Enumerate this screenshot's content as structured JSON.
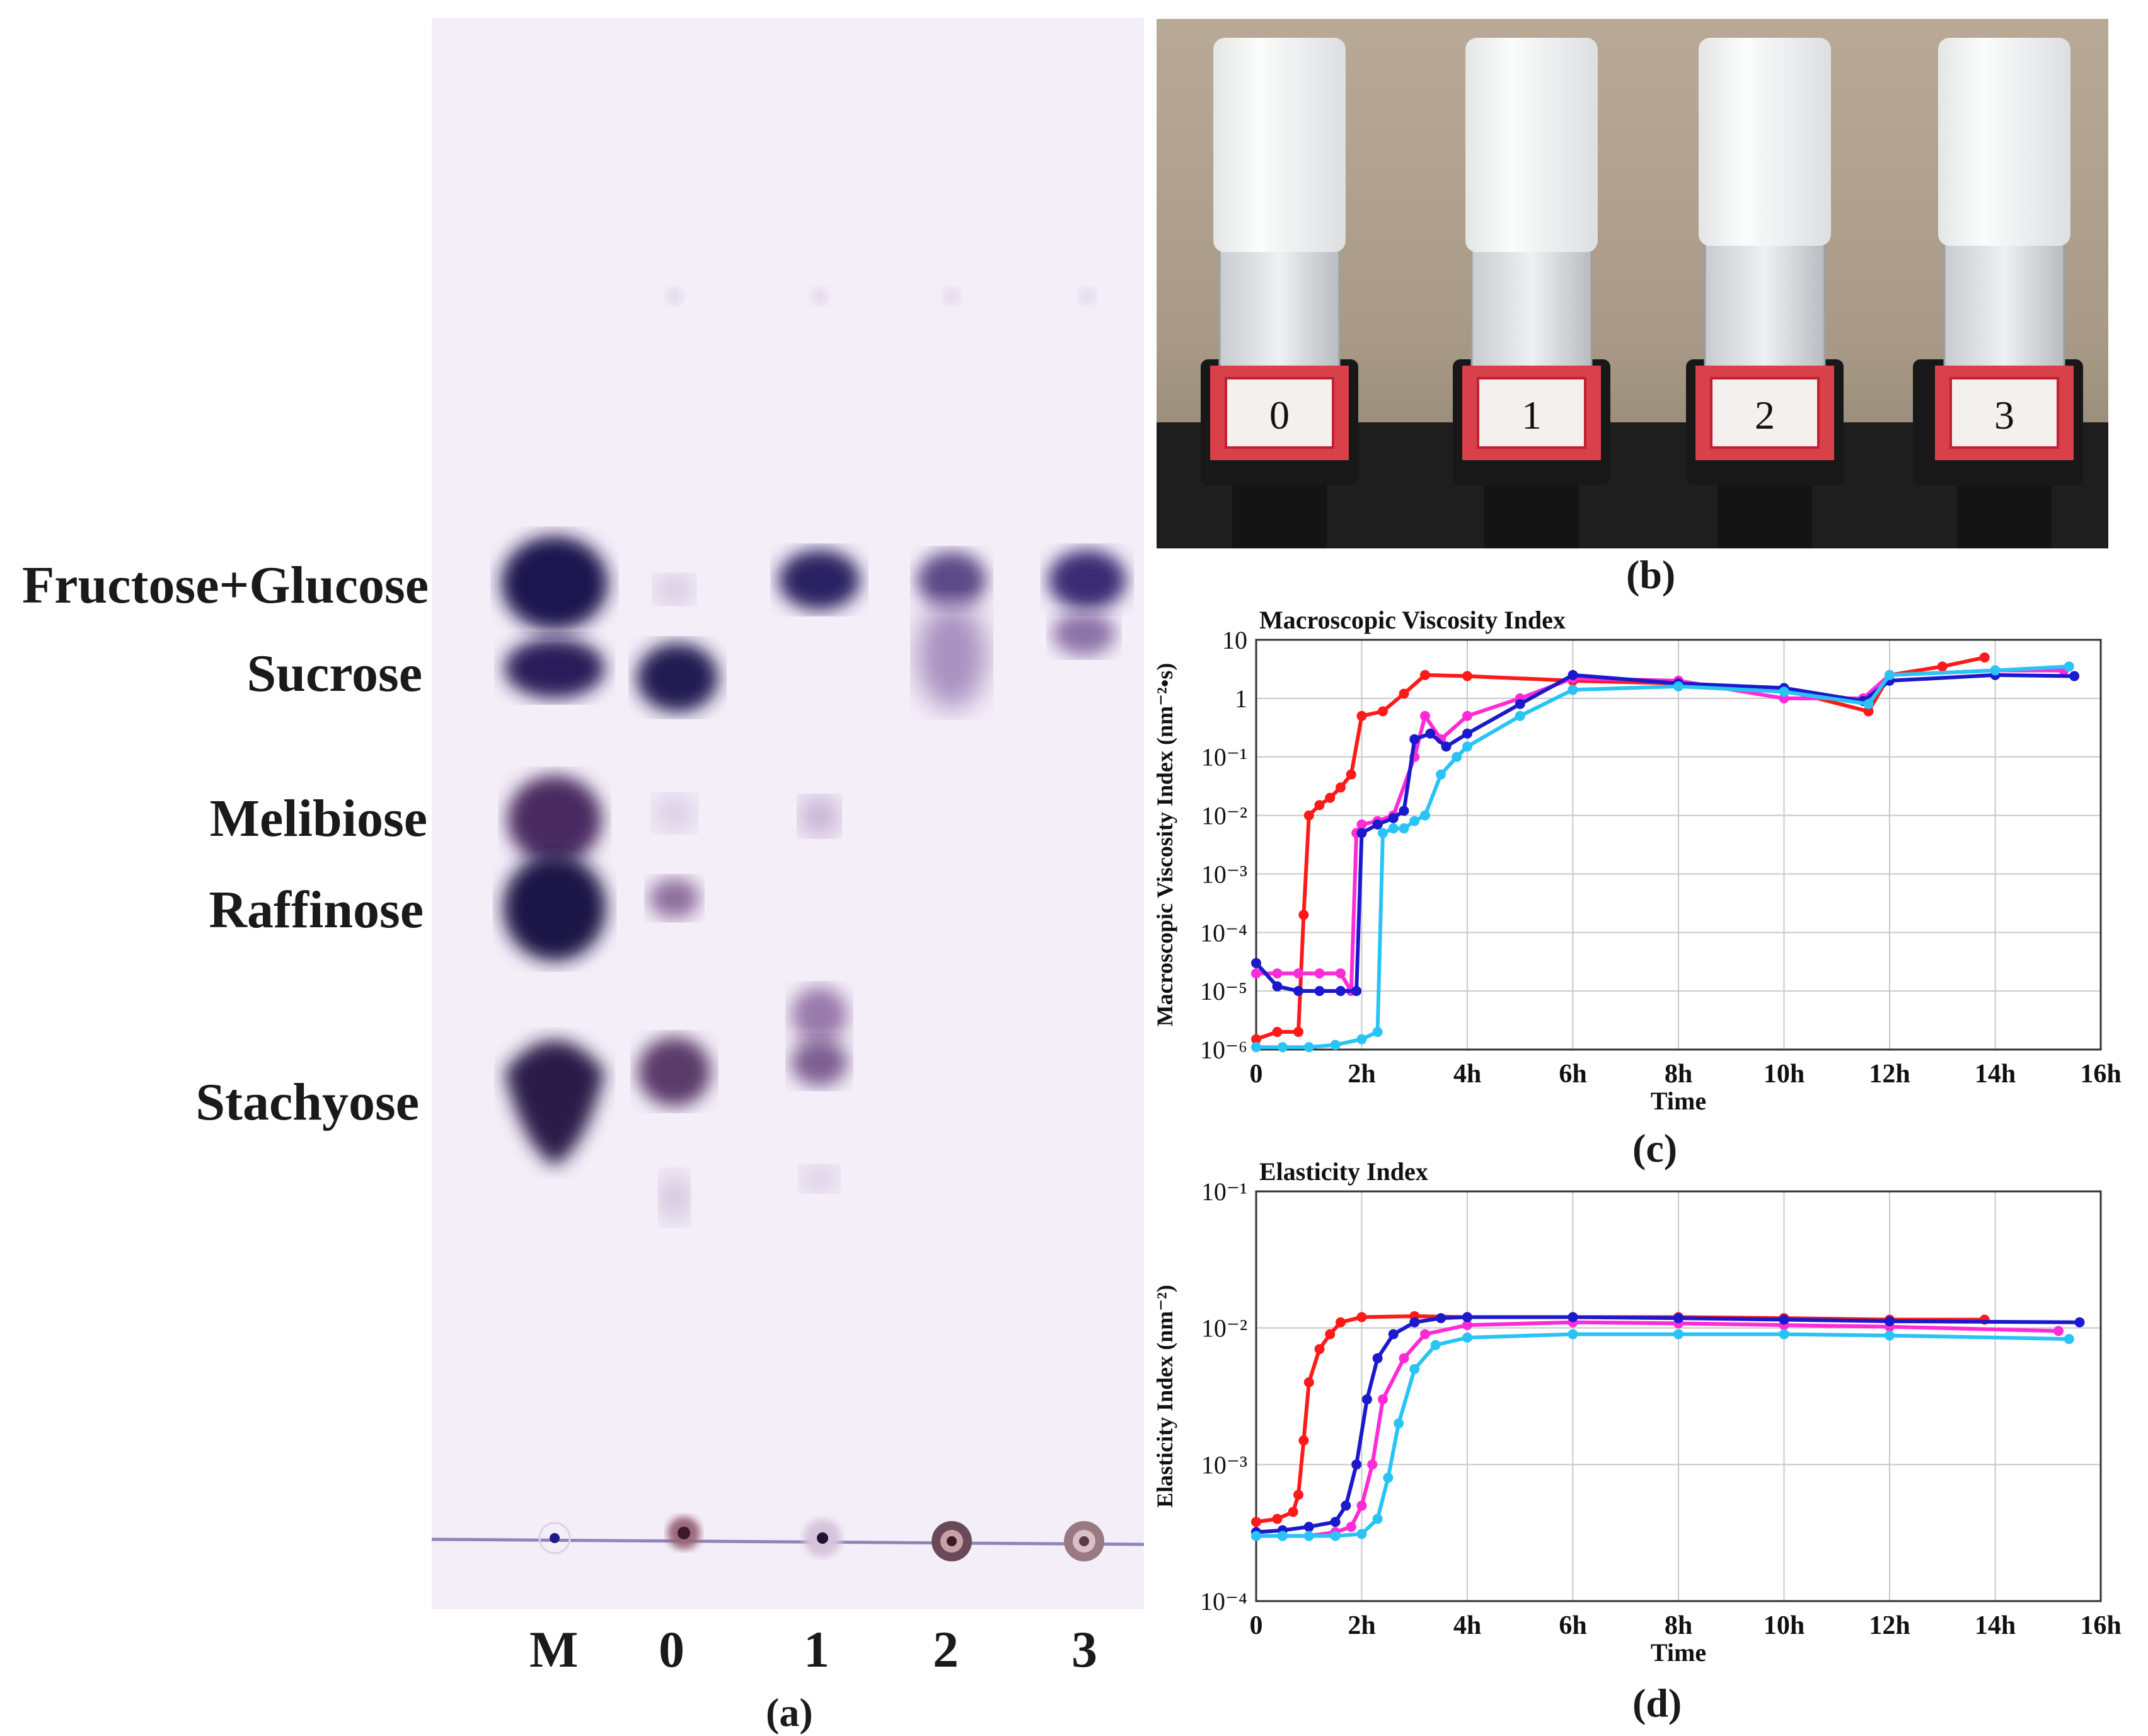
{
  "panel_a": {
    "caption": "(a)",
    "compound_labels": [
      "Fructose+Glucose",
      "Sucrose",
      "Melibiose",
      "Raffinose",
      "Stachyose"
    ],
    "lane_labels": [
      "M",
      "0",
      "1",
      "2",
      "3"
    ]
  },
  "panel_b": {
    "caption": "(b)",
    "vial_labels": [
      "0",
      "1",
      "2",
      "3"
    ]
  },
  "panel_c": {
    "caption": "(c)"
  },
  "panel_d": {
    "caption": "(d)"
  },
  "colors": {
    "series_red": "#ff1a1a",
    "series_magenta": "#ff2bd6",
    "series_blue": "#1a1acc",
    "series_cyan": "#29c4f5",
    "tlc_background": "#f4eef8",
    "spot": "#2a1646"
  },
  "chart_data": [
    {
      "type": "line",
      "title": "Macroscopic Viscosity Index",
      "xlabel": "Time",
      "ylabel": "Macroscopic Viscosity Index (nm⁻²•s)",
      "yscale": "log",
      "xlim": [
        0,
        16
      ],
      "ylim": [
        1e-06,
        10
      ],
      "x_ticks": [
        "0",
        "2h",
        "4h",
        "6h",
        "8h",
        "10h",
        "12h",
        "14h",
        "16h"
      ],
      "y_ticks": [
        "10⁻⁶",
        "10⁻⁵",
        "10⁻⁴",
        "10⁻³",
        "10⁻²",
        "10⁻¹",
        "1",
        "10"
      ],
      "grid": true,
      "series": [
        {
          "color": "#ff1a1a",
          "x": [
            0,
            0.4,
            0.8,
            0.9,
            1.0,
            1.2,
            1.4,
            1.6,
            1.8,
            2.0,
            2.4,
            2.8,
            3.2,
            4,
            6,
            8,
            10,
            11.6,
            12,
            13,
            13.8
          ],
          "y": [
            1.5e-06,
            2e-06,
            2e-06,
            0.0002,
            0.01,
            0.015,
            0.02,
            0.03,
            0.05,
            0.5,
            0.6,
            1.2,
            2.5,
            2.4,
            2.0,
            1.8,
            1.4,
            0.6,
            2.5,
            3.5,
            5.0
          ]
        },
        {
          "color": "#ff2bd6",
          "x": [
            0,
            0.4,
            0.8,
            1.2,
            1.6,
            1.8,
            1.9,
            2.0,
            2.3,
            2.6,
            3.0,
            3.2,
            3.5,
            4,
            5,
            6,
            8,
            10,
            11.5,
            12,
            14,
            15.3
          ],
          "y": [
            2e-05,
            2e-05,
            2e-05,
            2e-05,
            2e-05,
            1e-05,
            0.005,
            0.007,
            0.008,
            0.01,
            0.1,
            0.5,
            0.2,
            0.5,
            1.0,
            2.2,
            2.0,
            1.0,
            1.0,
            2.5,
            3.0,
            3.0
          ]
        },
        {
          "color": "#1a1acc",
          "x": [
            0,
            0.4,
            0.8,
            1.2,
            1.6,
            1.9,
            2.0,
            2.3,
            2.6,
            2.8,
            3.0,
            3.3,
            3.6,
            4,
            5,
            6,
            8,
            10,
            11.5,
            12,
            14,
            15.5
          ],
          "y": [
            3e-05,
            1.2e-05,
            1e-05,
            1e-05,
            1e-05,
            1e-05,
            0.005,
            0.007,
            0.009,
            0.012,
            0.2,
            0.25,
            0.15,
            0.25,
            0.8,
            2.5,
            1.8,
            1.5,
            0.9,
            2.0,
            2.5,
            2.4
          ]
        },
        {
          "color": "#29c4f5",
          "x": [
            0,
            0.5,
            1.0,
            1.5,
            2.0,
            2.3,
            2.4,
            2.6,
            2.8,
            3.0,
            3.2,
            3.5,
            3.8,
            4,
            5,
            6,
            8,
            10,
            11.6,
            12,
            14,
            15.4
          ],
          "y": [
            1.1e-06,
            1.1e-06,
            1.1e-06,
            1.2e-06,
            1.5e-06,
            2e-06,
            0.005,
            0.006,
            0.006,
            0.008,
            0.01,
            0.05,
            0.1,
            0.15,
            0.5,
            1.4,
            1.6,
            1.3,
            0.8,
            2.5,
            3.0,
            3.5
          ]
        }
      ]
    },
    {
      "type": "line",
      "title": "Elasticity Index",
      "xlabel": "Time",
      "ylabel": "Elasticity Index (nm⁻²)",
      "yscale": "log",
      "xlim": [
        0,
        16
      ],
      "ylim": [
        0.0001,
        0.1
      ],
      "x_ticks": [
        "0",
        "2h",
        "4h",
        "6h",
        "8h",
        "10h",
        "12h",
        "14h",
        "16h"
      ],
      "y_ticks": [
        "10⁻⁴",
        "10⁻³",
        "10⁻²",
        "10⁻¹"
      ],
      "grid": true,
      "series": [
        {
          "color": "#ff1a1a",
          "x": [
            0,
            0.4,
            0.7,
            0.8,
            0.9,
            1.0,
            1.2,
            1.4,
            1.6,
            2.0,
            3,
            4,
            6,
            8,
            10,
            12,
            13.8
          ],
          "y": [
            0.00038,
            0.0004,
            0.00045,
            0.0006,
            0.0015,
            0.004,
            0.007,
            0.009,
            0.011,
            0.012,
            0.0122,
            0.012,
            0.012,
            0.012,
            0.0118,
            0.0115,
            0.0115
          ]
        },
        {
          "color": "#ff2bd6",
          "x": [
            0,
            0.5,
            1.0,
            1.5,
            1.8,
            2.0,
            2.2,
            2.4,
            2.8,
            3.2,
            4,
            6,
            8,
            10,
            12,
            15.2
          ],
          "y": [
            0.0003,
            0.0003,
            0.0003,
            0.00032,
            0.00035,
            0.0005,
            0.001,
            0.003,
            0.006,
            0.009,
            0.0105,
            0.011,
            0.0108,
            0.0105,
            0.0102,
            0.0095
          ]
        },
        {
          "color": "#1a1acc",
          "x": [
            0,
            0.5,
            1.0,
            1.5,
            1.7,
            1.9,
            2.1,
            2.3,
            2.6,
            3.0,
            3.5,
            4,
            6,
            8,
            10,
            12,
            15.6
          ],
          "y": [
            0.00032,
            0.00033,
            0.00035,
            0.00038,
            0.0005,
            0.001,
            0.003,
            0.006,
            0.009,
            0.011,
            0.0118,
            0.012,
            0.012,
            0.0118,
            0.0115,
            0.0112,
            0.011
          ]
        },
        {
          "color": "#29c4f5",
          "x": [
            0,
            0.5,
            1.0,
            1.5,
            2.0,
            2.3,
            2.5,
            2.7,
            3.0,
            3.4,
            4,
            6,
            8,
            10,
            12,
            15.4
          ],
          "y": [
            0.0003,
            0.0003,
            0.0003,
            0.0003,
            0.00031,
            0.0004,
            0.0008,
            0.002,
            0.005,
            0.0075,
            0.0085,
            0.009,
            0.009,
            0.009,
            0.0088,
            0.0083
          ]
        }
      ]
    }
  ]
}
